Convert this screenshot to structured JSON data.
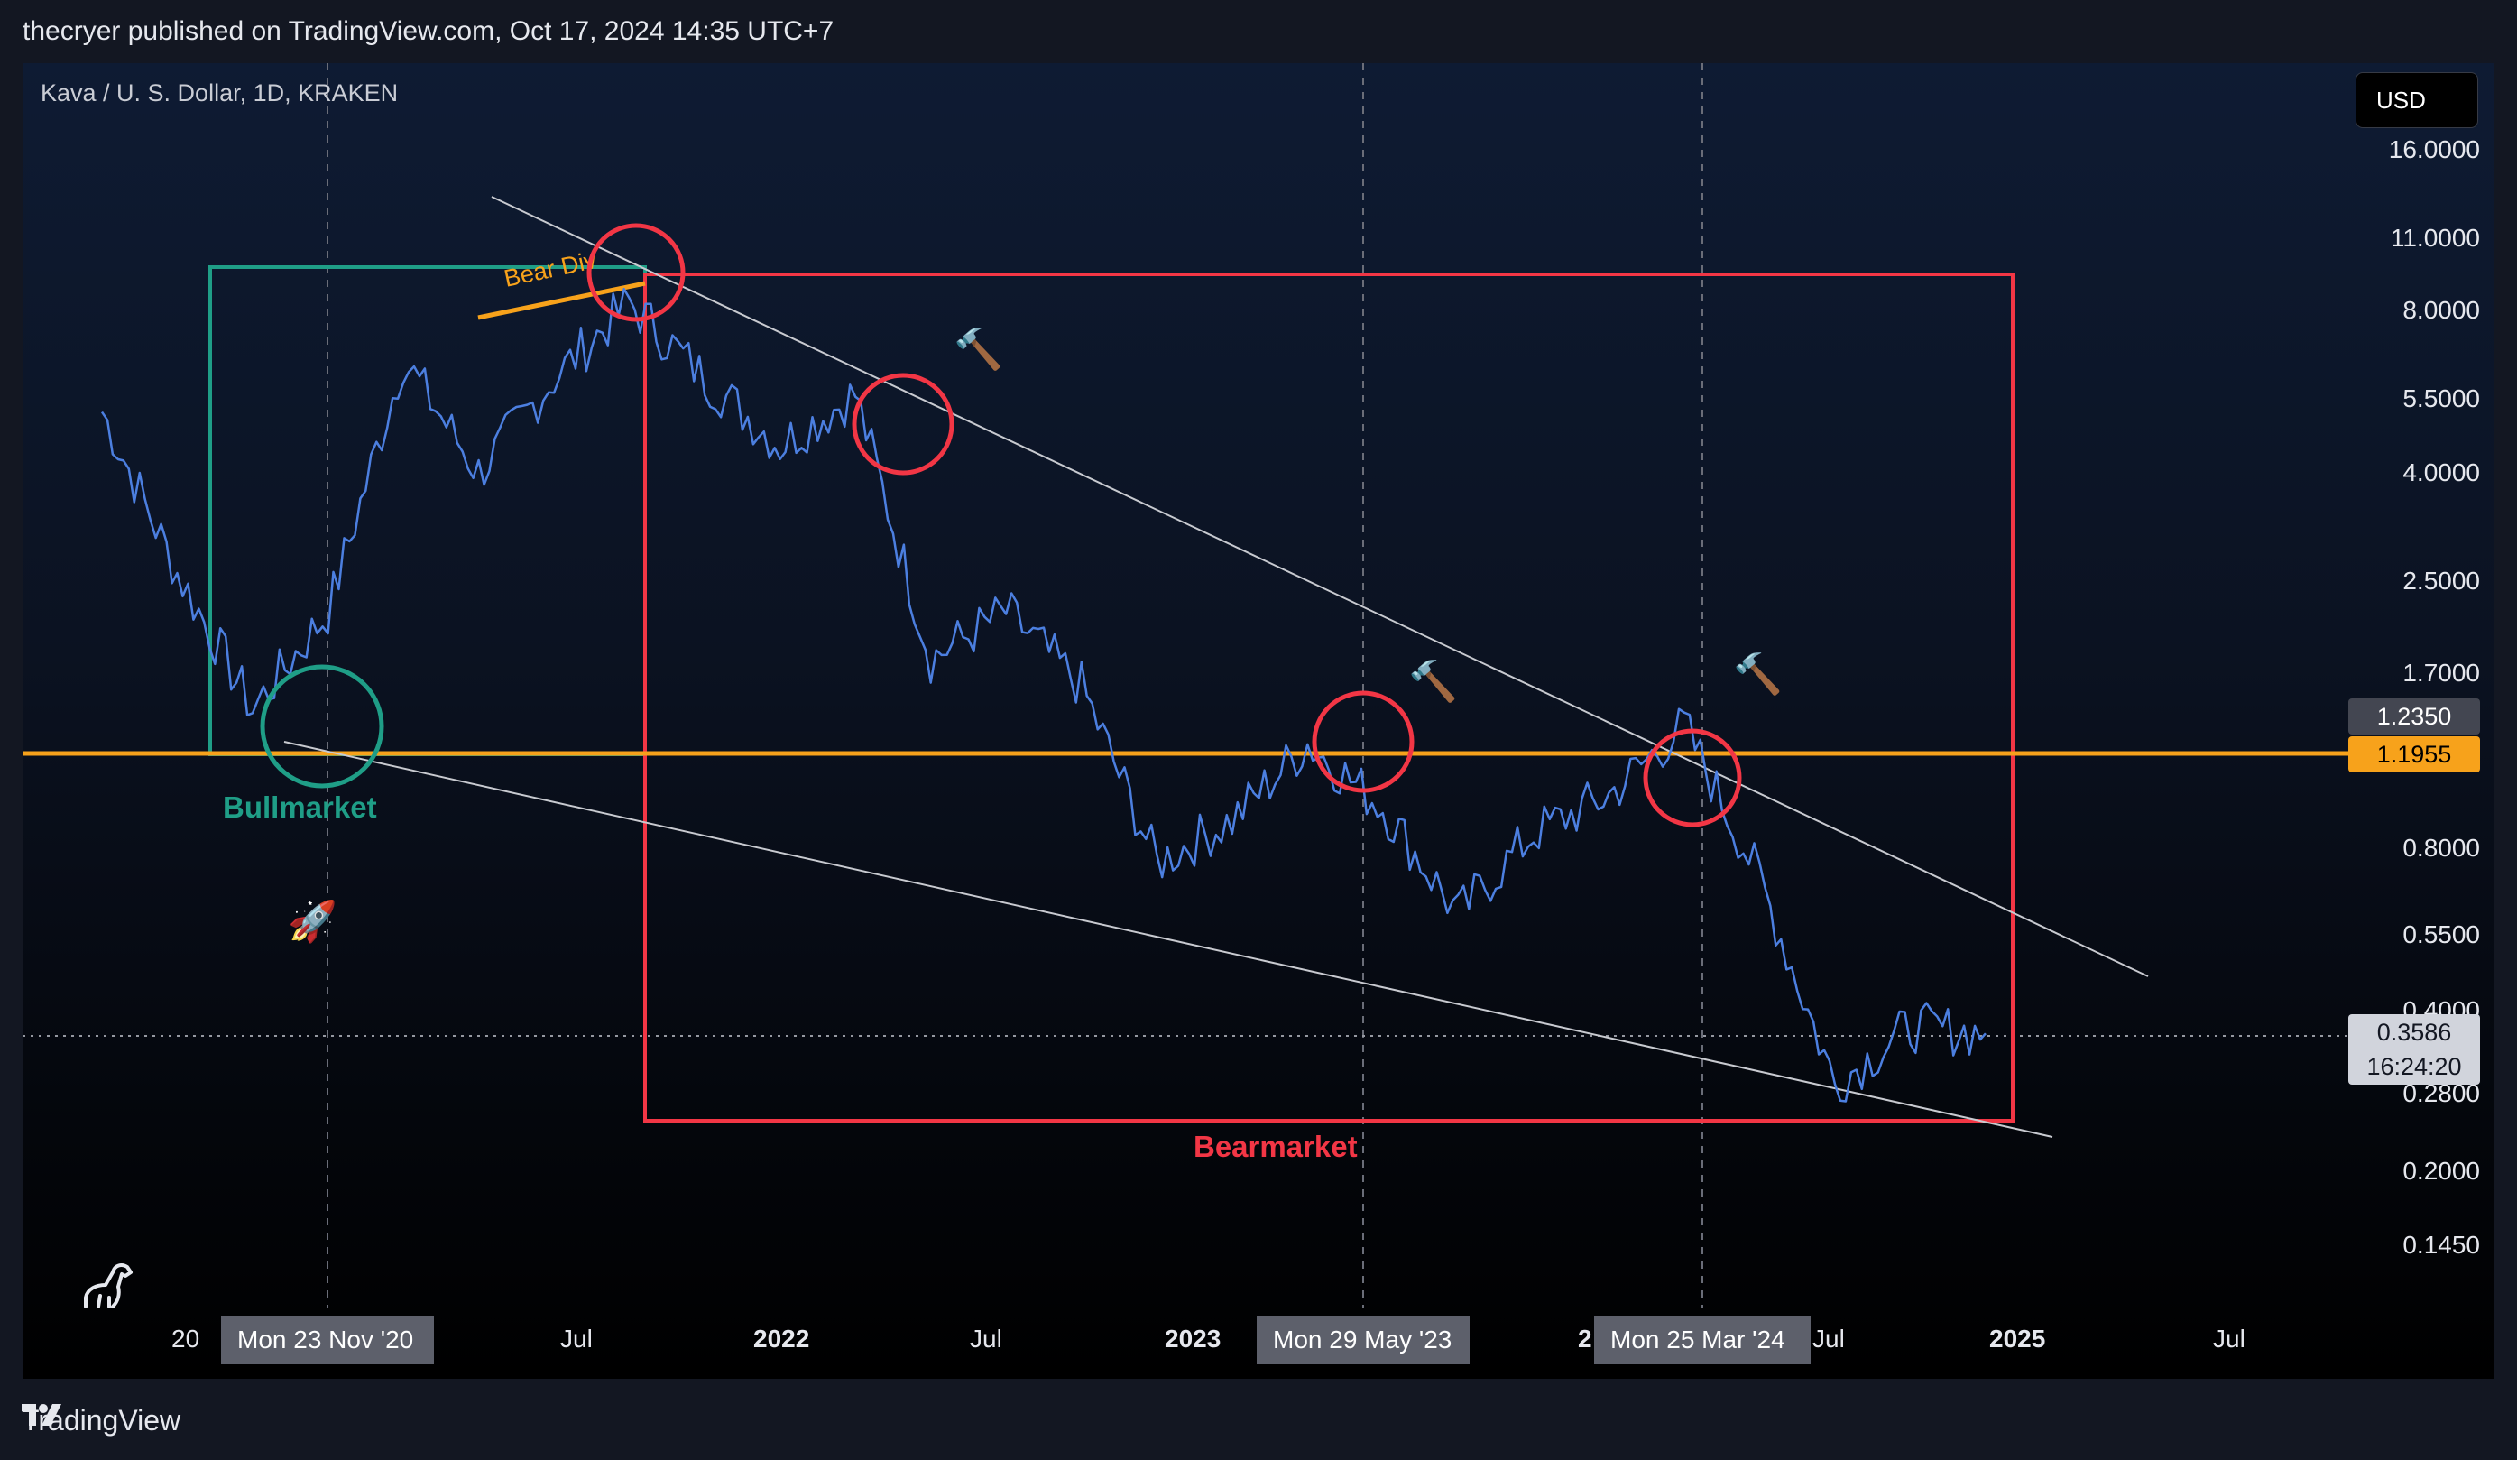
{
  "header": {
    "published_text": "thecryer published on TradingView.com, Oct 17, 2024 14:35 UTC+7"
  },
  "chart": {
    "symbol_label": "Kava / U. S. Dollar, 1D, KRAKEN",
    "currency_button": "USD",
    "price_axis": {
      "scale": "log",
      "ticks": [
        "16.0000",
        "11.0000",
        "8.0000",
        "5.5000",
        "4.0000",
        "2.5000",
        "1.7000",
        "0.8000",
        "0.5500",
        "0.4000",
        "0.2800",
        "0.2000",
        "0.1450"
      ]
    },
    "price_labels": {
      "upper": "1.2350",
      "highlight": "1.1955",
      "last_price": "0.3586",
      "countdown": "16:24:20"
    },
    "time_axis": {
      "ticks": [
        "20",
        "Jul",
        "2022",
        "Jul",
        "2023",
        "Jul",
        "2025",
        "Jul"
      ],
      "crosshair_labels": [
        "Mon 23 Nov '20",
        "Mon 29 May '23",
        "Mon 25 Mar '24"
      ],
      "partial_label": "2"
    },
    "annotations": {
      "bull_zone_label": "Bullmarket",
      "bear_zone_label": "Bearmarket",
      "divergence_label": "Bear Div",
      "rocket_icon": "🚀",
      "hammer_icon": "🔨"
    },
    "colors": {
      "bull_zone": "#1f9e87",
      "bear_zone": "#f23645",
      "horizontal_level": "#f7a21b",
      "price_series": "#4c7fe0",
      "trendlines": "#c8cad0"
    }
  },
  "chart_data": {
    "type": "line",
    "title": "Kava / U. S. Dollar, 1D, KRAKEN",
    "y_scale": "log",
    "ylim": [
      0.145,
      16
    ],
    "x": [
      "2020-09",
      "2020-11",
      "2021-01",
      "2021-03",
      "2021-05",
      "2021-07",
      "2021-09",
      "2021-11",
      "2022-01",
      "2022-03",
      "2022-05",
      "2022-07",
      "2022-09",
      "2022-11",
      "2023-01",
      "2023-03",
      "2023-05",
      "2023-07",
      "2023-09",
      "2023-11",
      "2024-01",
      "2024-03",
      "2024-05",
      "2024-07",
      "2024-09",
      "2024-10"
    ],
    "series": [
      {
        "values": [
          5.2,
          2.6,
          1.45,
          2.2,
          6.5,
          4.0,
          6.0,
          8.3,
          6.0,
          4.5,
          5.6,
          1.8,
          2.2,
          1.6,
          0.75,
          0.9,
          1.25,
          0.95,
          0.6,
          0.85,
          1.0,
          1.35,
          0.7,
          0.29,
          0.37,
          0.36
        ]
      }
    ],
    "horizontal_levels": [
      1.1955
    ],
    "last_price": 0.3586
  }
}
